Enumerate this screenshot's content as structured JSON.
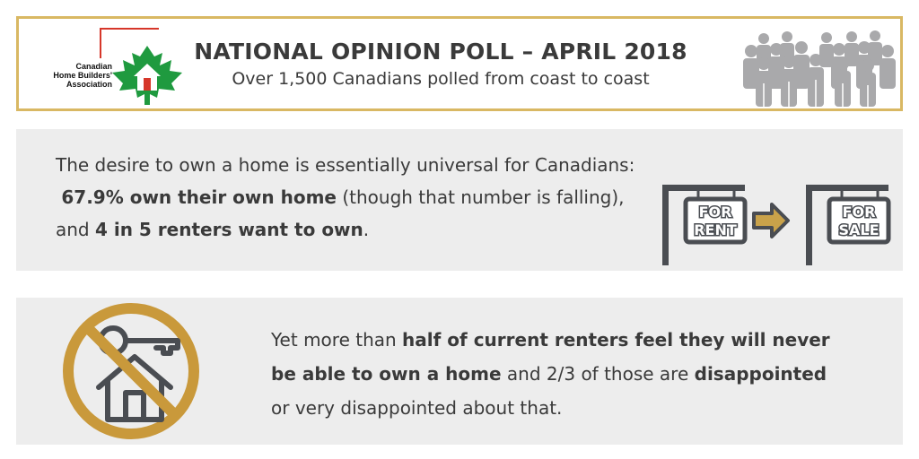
{
  "header": {
    "logo_lines": [
      "Canadian",
      "Home Builders'",
      "Association"
    ],
    "title": "NATIONAL OPINION POLL – APRIL 2018",
    "subtitle": "Over 1,500 Canadians polled from coast to coast"
  },
  "panel1": {
    "line1": "The desire to own a home is essentially universal for Canadians:",
    "stat1": "67.9% own their own home",
    "stat1_rest": " (though that number is falling),",
    "line3_pre": "and ",
    "stat2": "4 in 5 renters want to own",
    "line3_post": ".",
    "sign_rent_top": "FOR",
    "sign_rent_bottom": "RENT",
    "sign_sale_top": "FOR",
    "sign_sale_bottom": "SALE"
  },
  "panel2": {
    "pre": "Yet more than ",
    "bold1": "half of current renters feel they will never be able to own a home",
    "mid": " and 2/3 of those are ",
    "bold2": "disappointed",
    "post": " or very disappointed about that."
  },
  "colors": {
    "gold": "#d9b863",
    "crowd_gray": "#a9a9ab",
    "dark_gray": "#4a4d52",
    "arrow_gold": "#c9a24a",
    "ring_gold": "#c9993b",
    "logo_green": "#1f9a3f",
    "logo_red": "#d6372a"
  },
  "icons": [
    "maple-leaf-house-logo-icon",
    "crowd-icon",
    "for-rent-sign-icon",
    "arrow-right-icon",
    "for-sale-sign-icon",
    "no-key-house-icon"
  ]
}
